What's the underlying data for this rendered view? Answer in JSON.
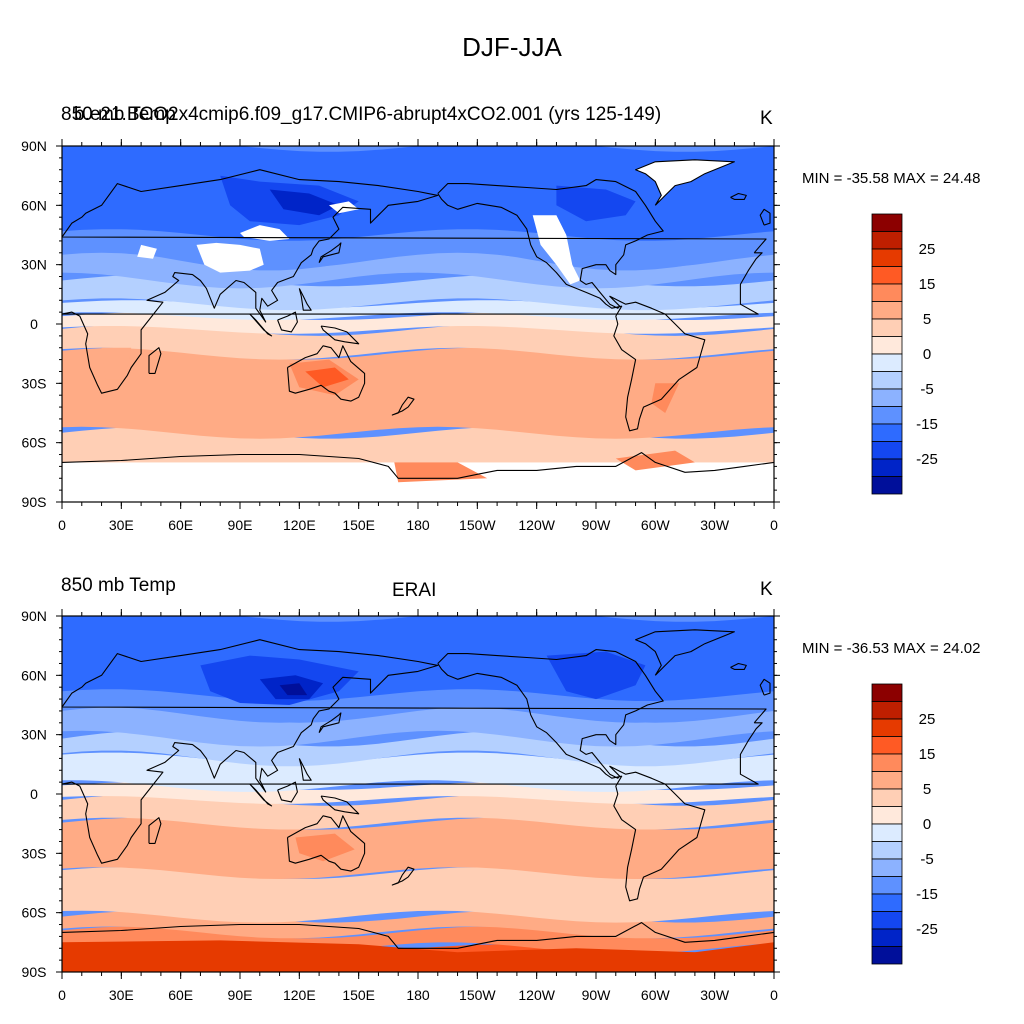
{
  "main_title": "DJF-JJA",
  "panels": [
    {
      "left_label": "850 mb Temp",
      "left_label_overlap": "b.e21.BCO2x4cmip6.f09_g17.CMIP6-abrupt4xCO2.001 (yrs 125-149)",
      "center_label": "",
      "units": "K",
      "stats": "MIN = -35.58 MAX =  24.48",
      "missing_data_masks": true
    },
    {
      "left_label": "850 mb Temp",
      "center_label": "ERAI",
      "units": "K",
      "stats": "MIN = -36.53 MAX =  24.02",
      "missing_data_masks": false
    }
  ],
  "lat_labels": [
    "90N",
    "60N",
    "30N",
    "0",
    "30S",
    "60S",
    "90S"
  ],
  "lon_labels": [
    "0",
    "30E",
    "60E",
    "90E",
    "120E",
    "150E",
    "180",
    "150W",
    "120W",
    "90W",
    "60W",
    "30W",
    "0"
  ],
  "colorbar": {
    "labels": [
      "25",
      "15",
      "5",
      "0",
      "-5",
      "-15",
      "-25"
    ],
    "colors": [
      "#8c0000",
      "#bf1f00",
      "#e63a00",
      "#ff5a24",
      "#ff8a5c",
      "#ffab85",
      "#ffcfb5",
      "#ffe9dc",
      "#dcebff",
      "#b4d0ff",
      "#8cb2ff",
      "#5e91ff",
      "#2e6bff",
      "#1447f0",
      "#0024c8",
      "#000f9a"
    ]
  },
  "colors": {
    "land_outline": "#000000",
    "missing_data": "#ffffff"
  }
}
